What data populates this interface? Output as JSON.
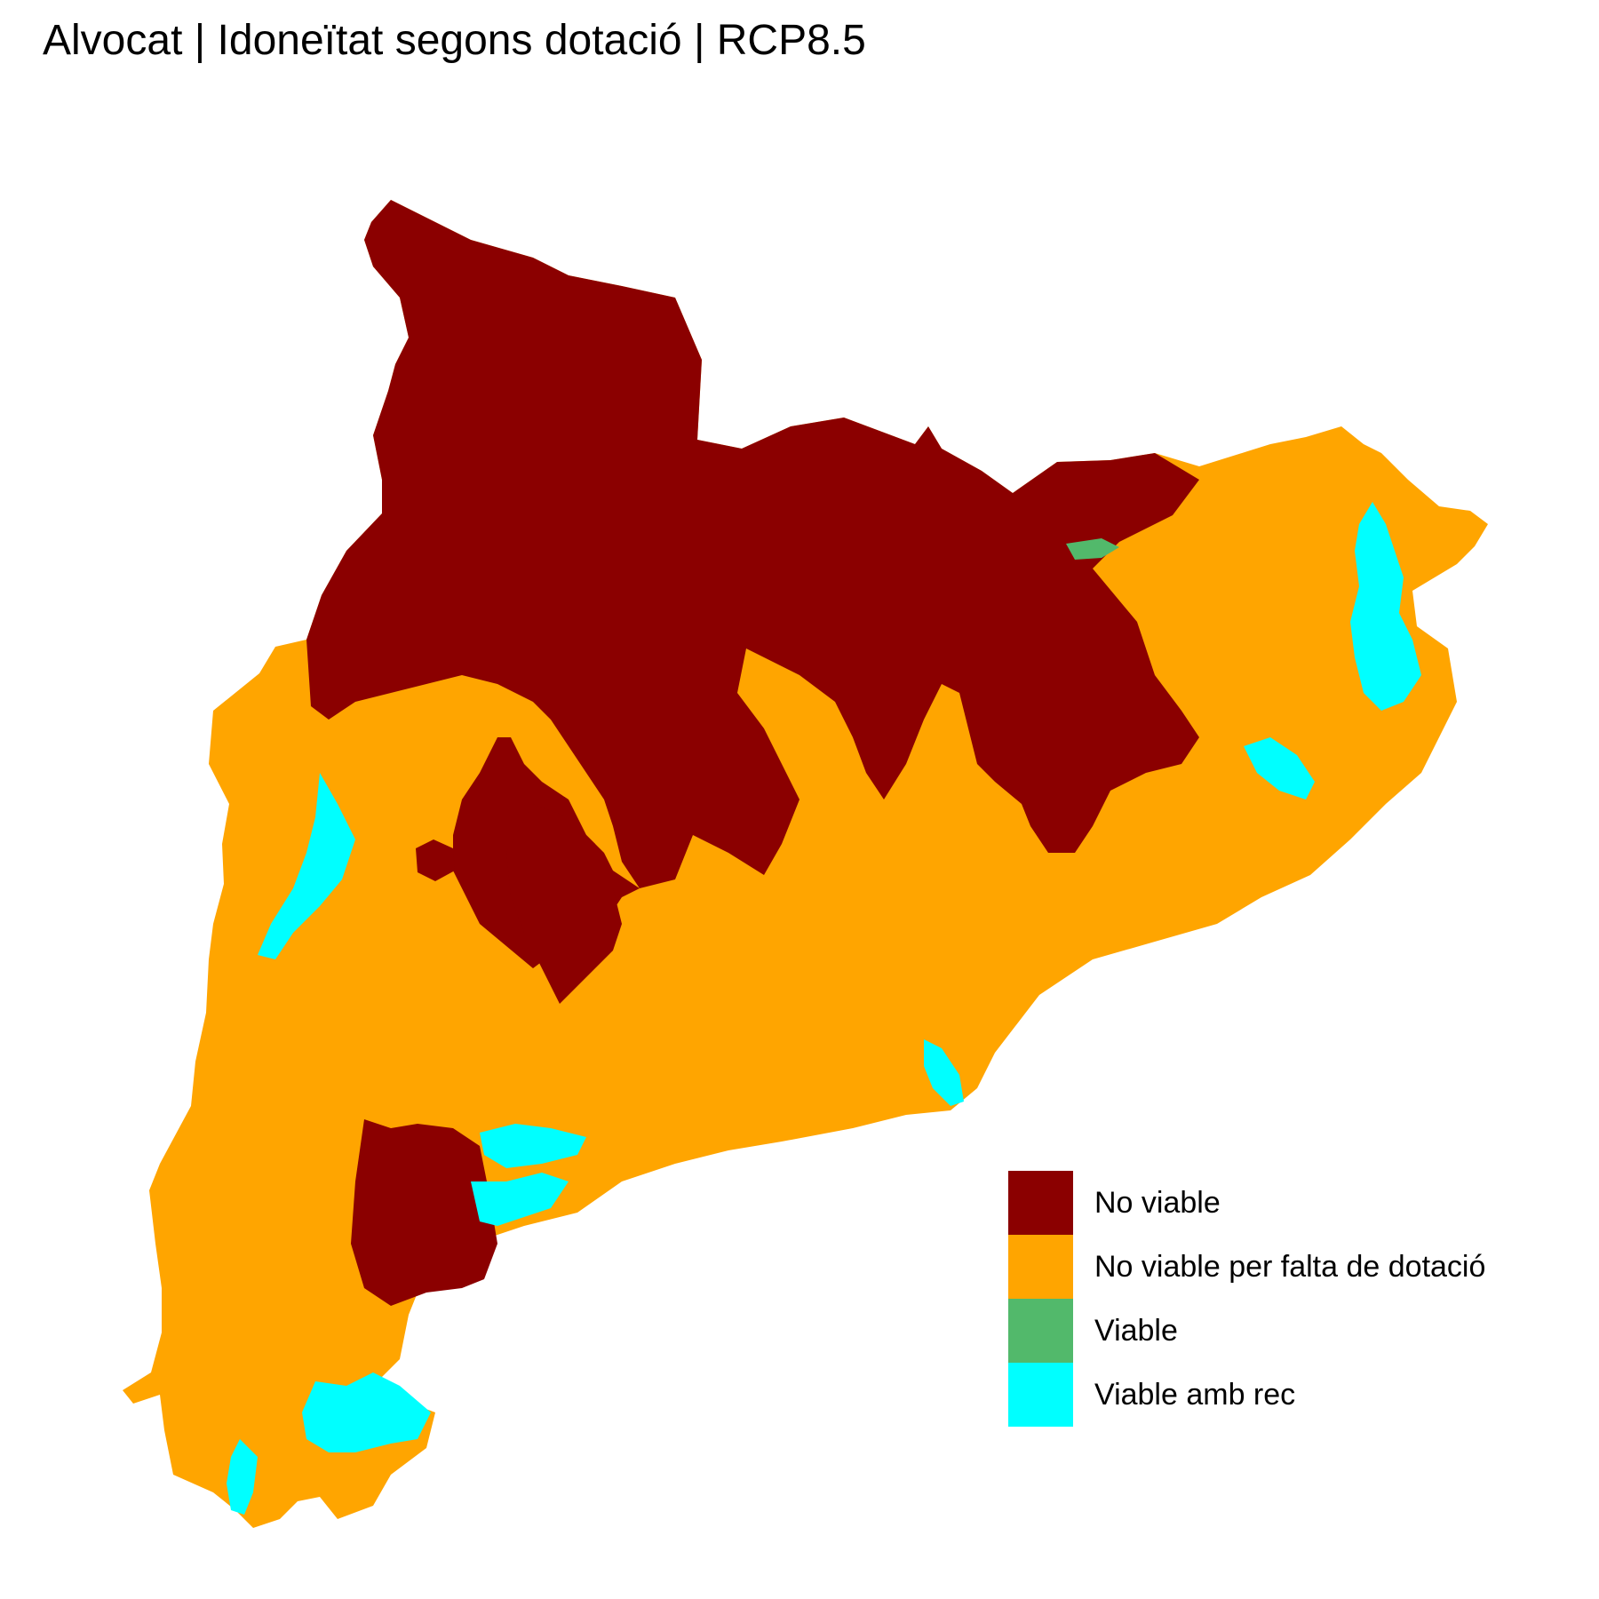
{
  "title": "Alvocat | Idoneïtat segons dotació | RCP8.5",
  "legend": {
    "items": [
      {
        "label": "No viable",
        "color": "#8B0000"
      },
      {
        "label": "No viable per falta de dotació",
        "color": "#FFA500"
      },
      {
        "label": "Viable",
        "color": "#52B96B"
      },
      {
        "label": "Viable amb rec",
        "color": "#00FFFF"
      }
    ]
  }
}
